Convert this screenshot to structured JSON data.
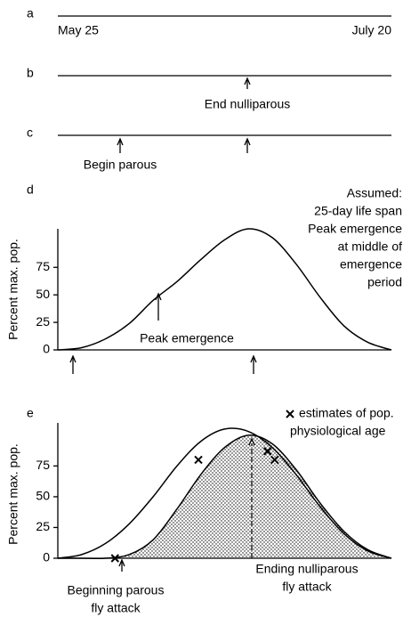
{
  "panels": {
    "a": {
      "label": "a",
      "start": "May 25",
      "end": "July 20"
    },
    "b": {
      "label": "b",
      "annotation": "End nulliparous"
    },
    "c": {
      "label": "c",
      "annotation": "Begin parous"
    }
  },
  "chart_data": [
    {
      "type": "line",
      "label": "d",
      "ylabel": "Percent max. pop.",
      "ylim": [
        0,
        110
      ],
      "yticks": [
        0,
        25,
        50,
        75
      ],
      "series": [
        {
          "color": "#000000",
          "values": [
            0,
            2,
            10,
            24,
            45,
            62,
            82,
            100,
            110,
            102,
            78,
            48,
            22,
            7,
            0
          ]
        }
      ],
      "annotation": "Peak emergence",
      "note": [
        "Assumed:",
        "25-day life span",
        "Peak emergence",
        "at middle of",
        "emergence",
        "period"
      ]
    },
    {
      "type": "line",
      "label": "e",
      "ylabel": "Percent max. pop.",
      "ylim": [
        0,
        110
      ],
      "yticks": [
        0,
        25,
        50,
        75
      ],
      "series": [
        {
          "color": "#000000",
          "values": [
            0,
            3,
            12,
            28,
            50,
            75,
            95,
            105,
            103,
            90,
            68,
            42,
            20,
            6,
            0
          ]
        },
        {
          "color": "#000000",
          "shaded": true,
          "values": [
            0,
            0,
            0,
            3,
            15,
            40,
            68,
            90,
            100,
            93,
            72,
            45,
            22,
            7,
            0
          ]
        }
      ],
      "markers": {
        "x": [
          2.4,
          5.9,
          8.8,
          9.1
        ],
        "values": [
          0,
          80,
          87,
          80
        ]
      },
      "legend": [
        "estimates of pop.",
        "physiological age"
      ],
      "annotation_left": [
        "Beginning parous",
        "fly attack"
      ],
      "annotation_right": [
        "Ending nulliparous",
        "fly attack"
      ]
    }
  ]
}
